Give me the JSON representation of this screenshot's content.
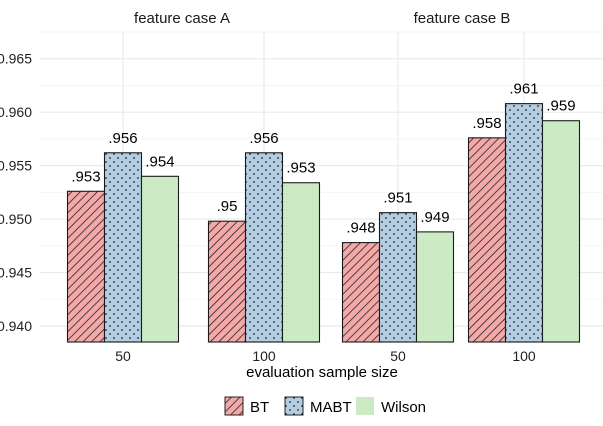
{
  "chart_data": {
    "type": "bar",
    "xlabel": "evaluation sample size",
    "ylabel": "",
    "ylim": [
      0.9385,
      0.9675
    ],
    "yticks": [
      "0.940",
      "0.945",
      "0.950",
      "0.955",
      "0.960",
      "0.965"
    ],
    "ytick_values": [
      0.94,
      0.945,
      0.95,
      0.955,
      0.96,
      0.965
    ],
    "categories": [
      "50",
      "100"
    ],
    "grid": true,
    "legend_position": "bottom",
    "panels": [
      {
        "title": "feature case A",
        "series": [
          {
            "name": "BT",
            "values": [
              0.9526,
              0.9498
            ],
            "labels": [
              ".953",
              ".95"
            ]
          },
          {
            "name": "MABT",
            "values": [
              0.9562,
              0.9562
            ],
            "labels": [
              ".956",
              ".956"
            ]
          },
          {
            "name": "Wilson",
            "values": [
              0.954,
              0.9534
            ],
            "labels": [
              ".954",
              ".953"
            ]
          }
        ]
      },
      {
        "title": "feature case B",
        "series": [
          {
            "name": "BT",
            "values": [
              0.9478,
              0.9576
            ],
            "labels": [
              ".948",
              ".958"
            ]
          },
          {
            "name": "MABT",
            "values": [
              0.9506,
              0.9608
            ],
            "labels": [
              ".951",
              ".961"
            ]
          },
          {
            "name": "Wilson",
            "values": [
              0.9488,
              0.9592
            ],
            "labels": [
              ".949",
              ".959"
            ]
          }
        ]
      }
    ],
    "colors": {
      "BT": "#f4a9a8",
      "MABT": "#b3cde3",
      "Wilson": "#ccebc5"
    },
    "patterns": {
      "BT": "stripe",
      "MABT": "dots",
      "Wilson": "none"
    }
  }
}
